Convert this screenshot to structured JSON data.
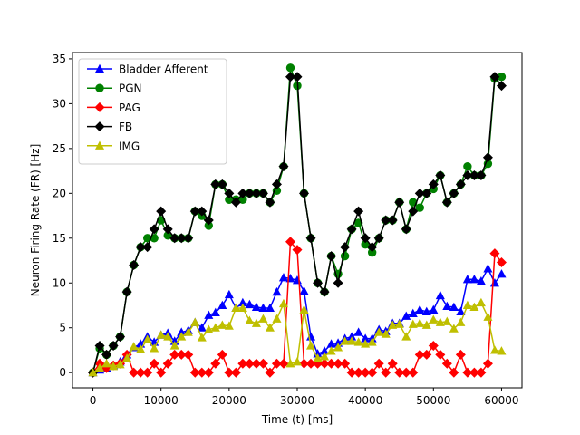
{
  "chart_data": {
    "type": "line",
    "title": "",
    "xlabel": "Time (t) [ms]",
    "ylabel": "Neuron Firing Rate (FR) [Hz]",
    "xlim": [
      -3000,
      63000
    ],
    "ylim": [
      -1.7,
      35.7
    ],
    "xticks": [
      0,
      10000,
      20000,
      30000,
      40000,
      50000,
      60000
    ],
    "yticks": [
      0,
      5,
      10,
      15,
      20,
      25,
      30,
      35
    ],
    "legend": "top-left",
    "grid": false,
    "x": [
      0,
      1000,
      2000,
      3000,
      4000,
      5000,
      6000,
      7000,
      8000,
      9000,
      10000,
      11000,
      12000,
      13000,
      14000,
      15000,
      16000,
      17000,
      18000,
      19000,
      20000,
      21000,
      22000,
      23000,
      24000,
      25000,
      26000,
      27000,
      28000,
      29000,
      30000,
      31000,
      32000,
      33000,
      34000,
      35000,
      36000,
      37000,
      38000,
      39000,
      40000,
      41000,
      42000,
      43000,
      44000,
      45000,
      46000,
      47000,
      48000,
      49000,
      50000,
      51000,
      52000,
      53000,
      54000,
      55000,
      56000,
      57000,
      58000,
      59000,
      60000
    ],
    "series": [
      {
        "name": "Bladder Afferent",
        "color": "#0000ff",
        "marker": "triangle",
        "values": [
          0,
          0.3,
          0.5,
          0.8,
          1.2,
          2,
          2.8,
          3.2,
          4,
          3.4,
          4.2,
          4.4,
          3.5,
          4.5,
          4.7,
          5.6,
          5,
          6.4,
          6.7,
          7.5,
          8.7,
          7.2,
          7.8,
          7.6,
          7.3,
          7.2,
          7.2,
          9,
          10.6,
          10.5,
          10.3,
          9.1,
          4,
          2.1,
          2.4,
          3.2,
          3.3,
          3.8,
          4,
          4.5,
          3.8,
          3.8,
          4.8,
          4.6,
          5.5,
          5.5,
          6.3,
          6.6,
          7,
          6.8,
          7,
          8.6,
          7.4,
          7.3,
          6.8,
          10.4,
          10.4,
          10.2,
          11.6,
          10,
          11
        ]
      },
      {
        "name": "PGN",
        "color": "#008000",
        "marker": "circle",
        "values": [
          0,
          2.7,
          2,
          3,
          4,
          9,
          12,
          14,
          15,
          15,
          17,
          15.3,
          15,
          15,
          15,
          18,
          17.5,
          16.4,
          21,
          21,
          19.3,
          19.3,
          19.3,
          20,
          20,
          20,
          19,
          20.3,
          23,
          34,
          32,
          20,
          15,
          10,
          9,
          13,
          11,
          13,
          16,
          16.7,
          14.3,
          13.4,
          15,
          17,
          17,
          19,
          16,
          19,
          18.4,
          20,
          20.5,
          22,
          19,
          20,
          21,
          23,
          22,
          22,
          23.3,
          32.8,
          33
        ]
      },
      {
        "name": "PAG",
        "color": "#ff0000",
        "marker": "diamond",
        "values": [
          0,
          1,
          0.5,
          0.8,
          1,
          2,
          0,
          0,
          0,
          1,
          0,
          1,
          2,
          2,
          2,
          0,
          0,
          0,
          1,
          2,
          0,
          0,
          1,
          1,
          1,
          1,
          0,
          1,
          1,
          14.6,
          13.7,
          1,
          1,
          1,
          1,
          1,
          1,
          1,
          0,
          0,
          0,
          0,
          1,
          0,
          1,
          0,
          0,
          0,
          2,
          2,
          3,
          2,
          1,
          0,
          2,
          0,
          0,
          0,
          1,
          13.3,
          12.3
        ]
      },
      {
        "name": "FB",
        "color": "#000000",
        "marker": "diamond",
        "values": [
          0,
          3,
          2,
          3,
          4,
          9,
          12,
          14,
          14,
          16,
          18,
          16,
          15,
          15,
          15,
          18,
          18,
          17,
          21,
          21,
          20,
          19,
          20,
          20,
          20,
          20,
          19,
          21,
          23,
          33,
          33,
          20,
          15,
          10,
          9,
          13,
          10,
          14,
          16,
          18,
          15,
          14,
          15,
          17,
          17,
          19,
          16,
          18,
          20,
          20,
          21,
          22,
          19,
          20,
          21,
          22,
          22,
          22,
          24,
          33,
          32
        ]
      },
      {
        "name": "IMG",
        "color": "#bfbf00",
        "marker": "triangle",
        "values": [
          0,
          0.5,
          1,
          0.7,
          0.9,
          1.6,
          2.9,
          2.6,
          3.7,
          2.7,
          4.2,
          4,
          3,
          4,
          4.5,
          5.6,
          3.9,
          4.8,
          5,
          5.3,
          5.2,
          7.2,
          7.2,
          5.8,
          5.5,
          6,
          5,
          6,
          7.7,
          1,
          1.2,
          7,
          3,
          1.6,
          1.8,
          2.4,
          2.8,
          3.5,
          3.5,
          3.4,
          3.2,
          3.4,
          4.5,
          4.3,
          5.3,
          5.4,
          4,
          5.4,
          5.5,
          5.3,
          5.9,
          5.6,
          5.7,
          4.9,
          5.6,
          7.5,
          7.3,
          7.8,
          6.2,
          2.5,
          2.4
        ]
      }
    ]
  }
}
